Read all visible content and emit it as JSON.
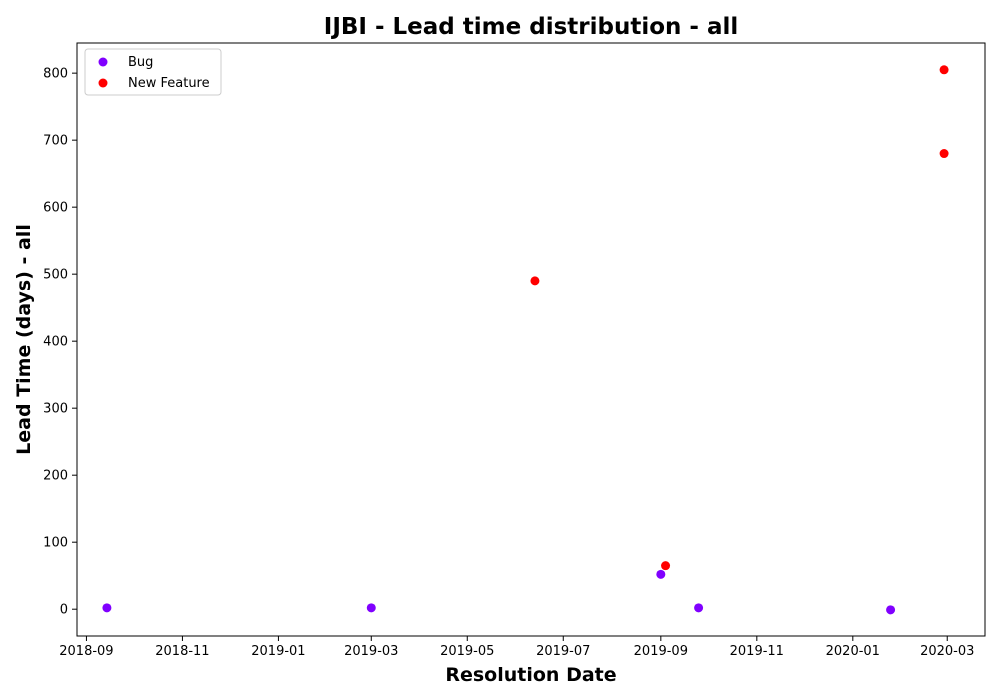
{
  "chart_data": {
    "type": "scatter",
    "title": "IJBI - Lead time distribution - all",
    "xlabel": "Resolution Date",
    "ylabel": "Lead Time (days) - all",
    "xlim": [
      "2018-08-26",
      "2020-03-25"
    ],
    "ylim": [
      -40,
      845
    ],
    "x_ticks": [
      "2018-09",
      "2018-11",
      "2019-01",
      "2019-03",
      "2019-05",
      "2019-07",
      "2019-09",
      "2019-11",
      "2020-01",
      "2020-03"
    ],
    "y_ticks": [
      0,
      100,
      200,
      300,
      400,
      500,
      600,
      700,
      800
    ],
    "legend_position": "top-left",
    "grid": false,
    "series": [
      {
        "name": "Bug",
        "color": "#8000ff",
        "points": [
          {
            "x": "2018-09-14",
            "y": 2
          },
          {
            "x": "2019-03-01",
            "y": 2
          },
          {
            "x": "2019-09-01",
            "y": 52
          },
          {
            "x": "2019-09-25",
            "y": 2
          },
          {
            "x": "2020-01-25",
            "y": -1
          }
        ]
      },
      {
        "name": "New Feature",
        "color": "#ff0000",
        "points": [
          {
            "x": "2019-06-13",
            "y": 490
          },
          {
            "x": "2019-09-04",
            "y": 65
          },
          {
            "x": "2020-02-28",
            "y": 680
          },
          {
            "x": "2020-02-28",
            "y": 805
          }
        ]
      }
    ]
  }
}
